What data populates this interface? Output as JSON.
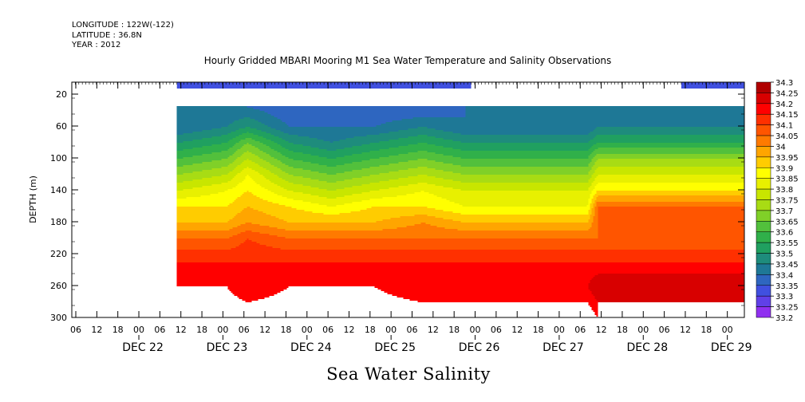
{
  "header": {
    "longitude": "LONGITUDE : 122W(-122)",
    "latitude": "LATITUDE : 36.8N",
    "year": "YEAR : 2012"
  },
  "chart_data": {
    "type": "heatmap",
    "title": "Hourly Gridded MBARI Mooring M1 Sea Water Temperature and Salinity Observations",
    "variable_label": "Sea Water Salinity",
    "ylabel": "DEPTH (m)",
    "y_axis": {
      "range": [
        300,
        5
      ],
      "reversed": true,
      "ticks": [
        20,
        60,
        100,
        140,
        180,
        220,
        260,
        300
      ]
    },
    "x_axis": {
      "start": "2012-12-21T06:00",
      "end": "2012-12-29T06:00",
      "hour_ticks": [
        "06",
        "12",
        "18",
        "00",
        "06",
        "12",
        "18",
        "00",
        "06",
        "12",
        "18",
        "00",
        "06",
        "12",
        "18",
        "00",
        "06",
        "12",
        "18",
        "00",
        "06",
        "12",
        "18",
        "00",
        "06",
        "12",
        "18",
        "00",
        "06",
        "12",
        "18",
        "00"
      ],
      "date_labels": [
        "DEC 22",
        "DEC 23",
        "DEC 24",
        "DEC 25",
        "DEC 26",
        "DEC 27",
        "DEC 28",
        "DEC 29"
      ]
    },
    "colorbar": {
      "levels": [
        "34.3",
        "34.25",
        "34.2",
        "34.15",
        "34.1",
        "34.05",
        "34",
        "33.95",
        "33.9",
        "33.85",
        "33.8",
        "33.75",
        "33.7",
        "33.65",
        "33.6",
        "33.55",
        "33.5",
        "33.45",
        "33.4",
        "33.35",
        "33.3",
        "33.25",
        "33.2"
      ],
      "colors": [
        "#b00000",
        "#d80000",
        "#ff0000",
        "#ff3000",
        "#ff5500",
        "#ff7a00",
        "#ffa500",
        "#ffcc00",
        "#ffff00",
        "#e8f000",
        "#c8e600",
        "#a8dc14",
        "#80d028",
        "#52c03c",
        "#30b04a",
        "#20a060",
        "#1e8c7c",
        "#1e7896",
        "#2e66c0",
        "#4050e0",
        "#6040e8",
        "#9030f0",
        "#c020f8"
      ]
    },
    "data_coverage": {
      "near_surface_bin_depth": 12,
      "near_surface_bin_value": 33.35,
      "near_surface_segments": [
        [
          "2012-12-22T12:00",
          "2012-12-26T00:00"
        ],
        [
          "2012-12-28T12:00",
          "2012-12-29T06:00"
        ]
      ],
      "profile_top_depth": 35,
      "profile_start": "2012-12-22T12:00",
      "gap_filled_period": [
        "2012-12-25T23:00",
        "2012-12-27T09:00"
      ]
    },
    "profiles": [
      {
        "time": "2012-12-22T12:00",
        "depths": [
          35,
          60,
          80,
          100,
          120,
          140,
          160,
          180,
          200,
          230,
          260,
          300
        ],
        "values": [
          33.45,
          33.45,
          33.55,
          33.65,
          33.75,
          33.85,
          33.95,
          34.0,
          34.1,
          34.2,
          34.2,
          34.15
        ]
      },
      {
        "time": "2012-12-23T02:00",
        "depths": [
          35,
          60,
          80,
          100,
          120,
          140,
          160,
          180,
          200,
          230,
          260,
          300
        ],
        "values": [
          33.45,
          33.5,
          33.6,
          33.7,
          33.8,
          33.9,
          33.95,
          34.0,
          34.1,
          34.2,
          34.2,
          34.15
        ]
      },
      {
        "time": "2012-12-23T08:00",
        "depths": [
          35,
          60,
          80,
          100,
          120,
          140,
          160,
          180,
          200,
          230,
          260,
          300
        ],
        "values": [
          33.45,
          33.55,
          33.7,
          33.8,
          33.9,
          33.95,
          34.0,
          34.05,
          34.15,
          34.2,
          34.25,
          34.15
        ]
      },
      {
        "time": "2012-12-23T20:00",
        "depths": [
          35,
          60,
          80,
          100,
          120,
          140,
          160,
          180,
          200,
          230,
          260,
          300
        ],
        "values": [
          33.4,
          33.45,
          33.55,
          33.65,
          33.75,
          33.85,
          33.95,
          34.0,
          34.1,
          34.2,
          34.2,
          34.15
        ]
      },
      {
        "time": "2012-12-24T08:00",
        "depths": [
          35,
          60,
          80,
          100,
          120,
          140,
          160,
          180,
          200,
          230,
          260,
          300
        ],
        "values": [
          33.4,
          33.45,
          33.5,
          33.6,
          33.7,
          33.8,
          33.9,
          34.0,
          34.1,
          34.2,
          34.2,
          34.2
        ]
      },
      {
        "time": "2012-12-24T20:00",
        "depths": [
          35,
          60,
          80,
          100,
          120,
          140,
          160,
          180,
          200,
          230,
          260,
          300
        ],
        "values": [
          33.4,
          33.45,
          33.55,
          33.65,
          33.75,
          33.85,
          33.95,
          34.0,
          34.1,
          34.2,
          34.2,
          34.15
        ]
      },
      {
        "time": "2012-12-25T10:00",
        "depths": [
          35,
          60,
          80,
          100,
          120,
          140,
          160,
          180,
          200,
          230,
          260,
          300
        ],
        "values": [
          33.4,
          33.5,
          33.6,
          33.7,
          33.8,
          33.9,
          33.95,
          34.05,
          34.1,
          34.2,
          34.25,
          34.15
        ]
      },
      {
        "time": "2012-12-25T22:00",
        "depths": [
          35,
          60,
          80,
          100,
          120,
          140,
          160,
          180,
          200,
          230,
          260,
          300
        ],
        "values": [
          33.45,
          33.45,
          33.55,
          33.65,
          33.75,
          33.85,
          33.9,
          34.0,
          34.1,
          34.2,
          34.25,
          34.15
        ]
      },
      {
        "time": "2012-12-27T09:00",
        "depths": [
          35,
          60,
          80,
          100,
          120,
          140,
          160,
          180,
          200,
          230,
          260,
          300
        ],
        "values": [
          33.45,
          33.45,
          33.55,
          33.65,
          33.75,
          33.85,
          33.9,
          34.0,
          34.1,
          34.2,
          34.25,
          34.15
        ]
      },
      {
        "time": "2012-12-27T12:00",
        "depths": [
          35,
          60,
          80,
          100,
          120,
          140,
          160,
          180,
          200,
          230,
          260,
          300
        ],
        "values": [
          33.45,
          33.5,
          33.6,
          33.75,
          33.85,
          33.95,
          34.1,
          34.1,
          34.1,
          34.2,
          34.3,
          34.2
        ]
      },
      {
        "time": "2012-12-29T00:00",
        "depths": [
          35,
          60,
          80,
          100,
          120,
          140,
          160,
          180,
          200,
          230,
          260,
          300
        ],
        "values": [
          33.45,
          33.5,
          33.6,
          33.75,
          33.85,
          33.95,
          34.1,
          34.1,
          34.1,
          34.2,
          34.3,
          34.2
        ]
      }
    ]
  }
}
